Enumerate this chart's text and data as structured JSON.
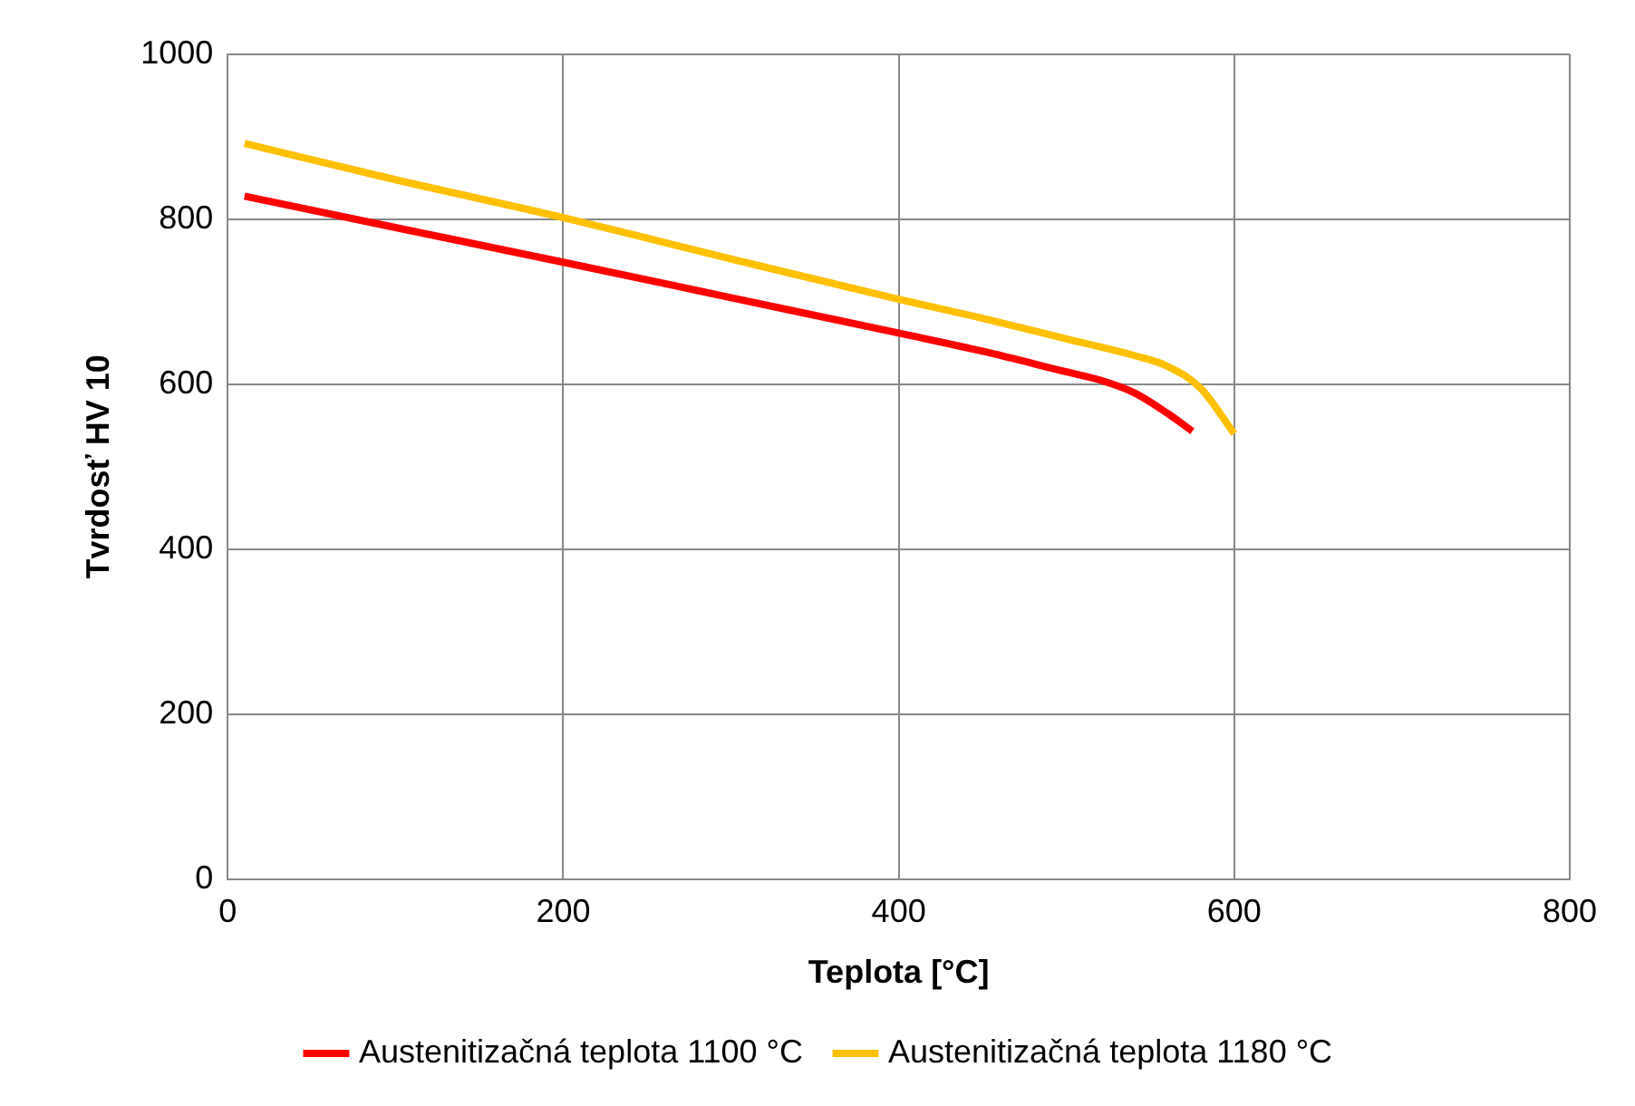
{
  "chart_data": {
    "type": "line",
    "xlabel": "Teplota [°C]",
    "ylabel": "Tvrdosť HV 10",
    "xlim": [
      0,
      800
    ],
    "xticks": [
      0,
      200,
      400,
      600,
      800
    ],
    "ylim": [
      0,
      1000
    ],
    "yticks": [
      0,
      200,
      400,
      600,
      800,
      1000
    ],
    "grid": true,
    "legend": "bottom",
    "marker": "none",
    "line_style": "solid",
    "series": [
      {
        "name": "Austenitizačná teplota 1100 °C",
        "color": "#ff0000",
        "x": [
          10,
          100,
          200,
          300,
          400,
          450,
          500,
          520,
          540,
          560,
          575
        ],
        "values": [
          828,
          790,
          748,
          705,
          662,
          640,
          615,
          605,
          590,
          565,
          543
        ]
      },
      {
        "name": "Austenitizačná teplota 1180 °C",
        "color": "#ffc000",
        "x": [
          10,
          100,
          200,
          300,
          400,
          450,
          500,
          540,
          560,
          580,
          600
        ],
        "values": [
          892,
          848,
          802,
          752,
          703,
          680,
          655,
          635,
          622,
          595,
          540
        ]
      }
    ]
  }
}
